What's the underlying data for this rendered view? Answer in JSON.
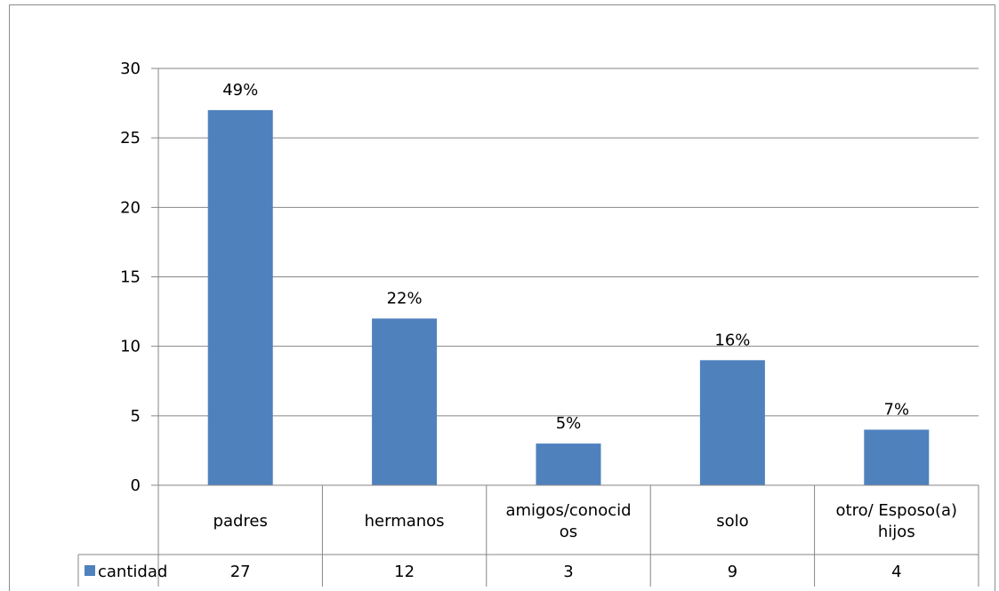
{
  "chart_data": {
    "type": "bar",
    "categories": [
      [
        "padres"
      ],
      [
        "hermanos"
      ],
      [
        "amigos/conocid",
        "os"
      ],
      [
        "solo"
      ],
      [
        "otro/ Esposo(a)",
        "hijos"
      ]
    ],
    "series": [
      {
        "name": "cantidad",
        "values": [
          27,
          12,
          3,
          9,
          4
        ],
        "color": "#4f81bd"
      }
    ],
    "data_labels": [
      "49%",
      "22%",
      "5%",
      "16%",
      "7%"
    ],
    "y_ticks": [
      "0",
      "5",
      "10",
      "15",
      "20",
      "25",
      "30"
    ],
    "ylim": [
      0,
      30
    ],
    "grid": true,
    "legend": "data-table-left"
  }
}
